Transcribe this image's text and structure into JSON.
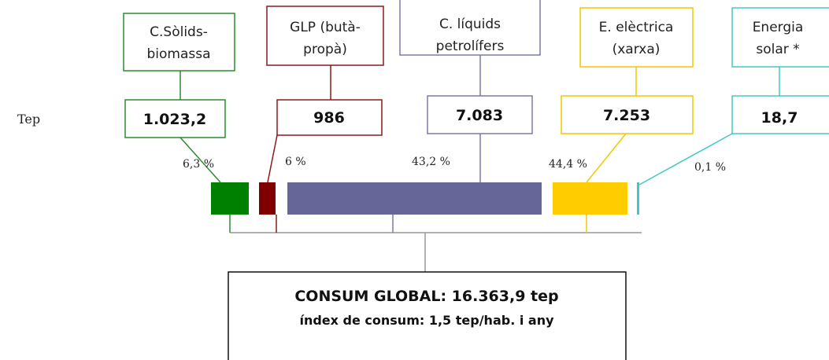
{
  "unit_label": "Tep",
  "nodes": [
    {
      "label": [
        "C.Sòlids-",
        "biomassa"
      ],
      "value": "1.023,2",
      "percent": "6,3 %"
    },
    {
      "label": [
        "GLP (butà-",
        "propà)"
      ],
      "value": "986",
      "percent": "6 %"
    },
    {
      "label": [
        "C. líquids",
        "petrolífers"
      ],
      "value": "7.083",
      "percent": "43,2 %"
    },
    {
      "label": [
        "E. elèctrica",
        "(xarxa)"
      ],
      "value": "7.253",
      "percent": "44,4 %"
    },
    {
      "label": [
        "Energia",
        "solar *"
      ],
      "value": "18,7",
      "percent": "0,1 %"
    }
  ],
  "total": {
    "title": "CONSUM GLOBAL: 16.363,9 tep",
    "subtitle": "índex de consum: 1,5 tep/hab. i any"
  }
}
